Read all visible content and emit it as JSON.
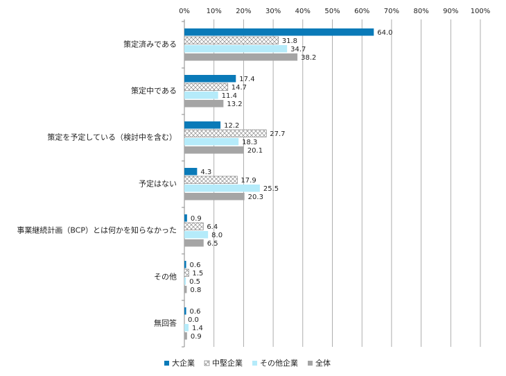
{
  "chart_data": {
    "type": "barh",
    "categories": [
      "策定済みである",
      "策定中である",
      "策定を予定している（検討中を含む）",
      "予定はない",
      "事業継続計画（BCP）とは何かを知らなかった",
      "その他",
      "無回答"
    ],
    "series": [
      {
        "name": "大企業",
        "color": "#0a7ab8",
        "values": [
          64.0,
          17.4,
          12.2,
          4.3,
          0.9,
          0.6,
          0.6
        ],
        "value_labels": [
          "64.0",
          "17.4",
          "12.2",
          "4.3",
          "0.9",
          "0.6",
          "0.6"
        ]
      },
      {
        "name": "中堅企業",
        "color": "#ffffff",
        "pattern": "crosshatch",
        "values": [
          31.8,
          14.7,
          27.7,
          17.9,
          6.4,
          1.5,
          0.0
        ],
        "value_labels": [
          "31.8",
          "14.7",
          "27.7",
          "17.9",
          "6.4",
          "1.5",
          "0.0"
        ]
      },
      {
        "name": "その他企業",
        "color": "#b5ebfa",
        "values": [
          34.7,
          11.4,
          18.3,
          25.5,
          8.0,
          0.5,
          1.4
        ],
        "value_labels": [
          "34.7",
          "11.4",
          "18.3",
          "25.5",
          "8.0",
          "0.5",
          "1.4"
        ]
      },
      {
        "name": "全体",
        "color": "#a5a5a5",
        "values": [
          38.2,
          13.2,
          20.1,
          20.3,
          6.5,
          0.8,
          0.9
        ],
        "value_labels": [
          "38.2",
          "13.2",
          "20.1",
          "20.3",
          "6.5",
          "0.8",
          "0.9"
        ]
      }
    ],
    "xlim": [
      0,
      100
    ],
    "xticks": [
      {
        "value": 0,
        "label": "0%"
      },
      {
        "value": 10,
        "label": "10%"
      },
      {
        "value": 20,
        "label": "20%"
      },
      {
        "value": 30,
        "label": "30%"
      },
      {
        "value": 40,
        "label": "40%"
      },
      {
        "value": 50,
        "label": "50%"
      },
      {
        "value": 60,
        "label": "60%"
      },
      {
        "value": 70,
        "label": "70%"
      },
      {
        "value": 80,
        "label": "80%"
      },
      {
        "value": 90,
        "label": "90%"
      },
      {
        "value": 100,
        "label": "100%"
      }
    ],
    "grid": true,
    "legend": "bottom"
  }
}
